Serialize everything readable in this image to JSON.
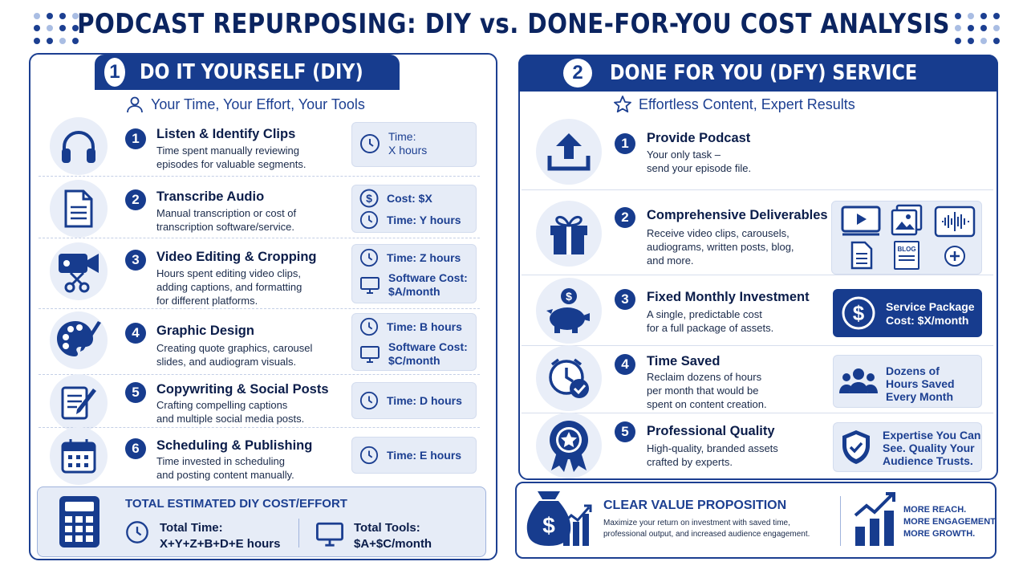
{
  "title": "PODCAST REPURPOSING: DIY vs. DONE-FOR-YOU COST ANALYSIS",
  "colors": {
    "navy": "#173c8e",
    "light": "#e6ecf7",
    "accent": "#1c3f91"
  },
  "diy": {
    "number": "1",
    "heading": "DO IT YOURSELF (DIY)",
    "subtitle": "Your Time, Your Effort, Your Tools",
    "steps": [
      {
        "n": "1",
        "title": "Listen & Identify Clips",
        "desc1": "Time spent manually reviewing",
        "desc2": "episodes for valuable segments.",
        "desc3": "",
        "icon": "headphones-icon",
        "box": [
          {
            "icon": "clock-icon",
            "l1": "Time:",
            "l2": "X hours"
          }
        ]
      },
      {
        "n": "2",
        "title": "Transcribe Audio",
        "desc1": "Manual transcription or cost of",
        "desc2": "transcription software/service.",
        "desc3": "",
        "icon": "document-icon",
        "box": [
          {
            "icon": "dollar-icon",
            "l1": "Cost: $X",
            "l2": ""
          },
          {
            "icon": "clock-icon",
            "l1": "Time: Y hours",
            "l2": ""
          }
        ]
      },
      {
        "n": "3",
        "title": "Video Editing & Cropping",
        "desc1": "Hours spent editing video clips,",
        "desc2": "adding captions, and formatting",
        "desc3": "for different platforms.",
        "icon": "video-scissors-icon",
        "box": [
          {
            "icon": "clock-icon",
            "l1": "Time: Z hours",
            "l2": ""
          },
          {
            "icon": "monitor-icon",
            "l1": "Software Cost:",
            "l2": "$A/month"
          }
        ]
      },
      {
        "n": "4",
        "title": "Graphic Design",
        "desc1": "Creating quote graphics, carousel",
        "desc2": "slides, and audiogram visuals.",
        "desc3": "",
        "icon": "palette-icon",
        "box": [
          {
            "icon": "clock-icon",
            "l1": "Time: B hours",
            "l2": ""
          },
          {
            "icon": "monitor-icon",
            "l1": "Software Cost:",
            "l2": "$C/month"
          }
        ]
      },
      {
        "n": "5",
        "title": "Copywriting & Social Posts",
        "desc1": "Crafting compelling captions",
        "desc2": "and multiple social media posts.",
        "desc3": "",
        "icon": "pencil-note-icon",
        "box": [
          {
            "icon": "clock-icon",
            "l1": "Time: D hours",
            "l2": ""
          }
        ]
      },
      {
        "n": "6",
        "title": "Scheduling & Publishing",
        "desc1": "Time invested in scheduling",
        "desc2": "and posting content manually.",
        "desc3": "",
        "icon": "calendar-icon",
        "box": [
          {
            "icon": "clock-icon",
            "l1": "Time: E hours",
            "l2": ""
          }
        ]
      }
    ],
    "total": {
      "heading": "TOTAL ESTIMATED DIY COST/EFFORT",
      "time_label": "Total Time:",
      "time_value": "X+Y+Z+B+D+E hours",
      "tools_label": "Total Tools:",
      "tools_value": "$A+$C/month"
    }
  },
  "dfy": {
    "number": "2",
    "heading": "DONE FOR YOU (DFY) SERVICE",
    "subtitle": "Effortless Content, Expert Results",
    "steps": [
      {
        "n": "1",
        "title": "Provide Podcast",
        "desc1": "Your only task –",
        "desc2": "send your episode file.",
        "desc3": "",
        "icon": "upload-icon"
      },
      {
        "n": "2",
        "title": "Comprehensive Deliverables",
        "desc1": "Receive video clips, carousels,",
        "desc2": "audiograms, written posts, blog,",
        "desc3": "and more.",
        "icon": "gift-icon"
      },
      {
        "n": "3",
        "title": "Fixed Monthly Investment",
        "desc1": "A single, predictable cost",
        "desc2": "for a full package of assets.",
        "desc3": "",
        "icon": "piggy-bank-icon"
      },
      {
        "n": "4",
        "title": "Time Saved",
        "desc1": "Reclaim dozens of hours",
        "desc2": "per month that would be",
        "desc3": "spent on content creation.",
        "icon": "clock-check-icon"
      },
      {
        "n": "5",
        "title": "Professional Quality",
        "desc1": "High-quality, branded assets",
        "desc2": "crafted by experts.",
        "desc3": "",
        "icon": "award-icon"
      }
    ],
    "deliverable_blog": "BLOG",
    "package": {
      "l1": "Service Package",
      "l2": "Cost: $X/month"
    },
    "saved": {
      "l1": "Dozens of",
      "l2": "Hours Saved",
      "l3": "Every Month"
    },
    "quality": {
      "l1": "Expertise You Can",
      "l2": "See. Quality Your",
      "l3": "Audience Trusts."
    },
    "value": {
      "heading": "CLEAR VALUE PROPOSITION",
      "desc1": "Maximize your return on investment with saved time,",
      "desc2": "professional output, and increased audience engagement.",
      "g1": "MORE REACH.",
      "g2": "MORE ENGAGEMENT.",
      "g3": "MORE GROWTH."
    }
  }
}
